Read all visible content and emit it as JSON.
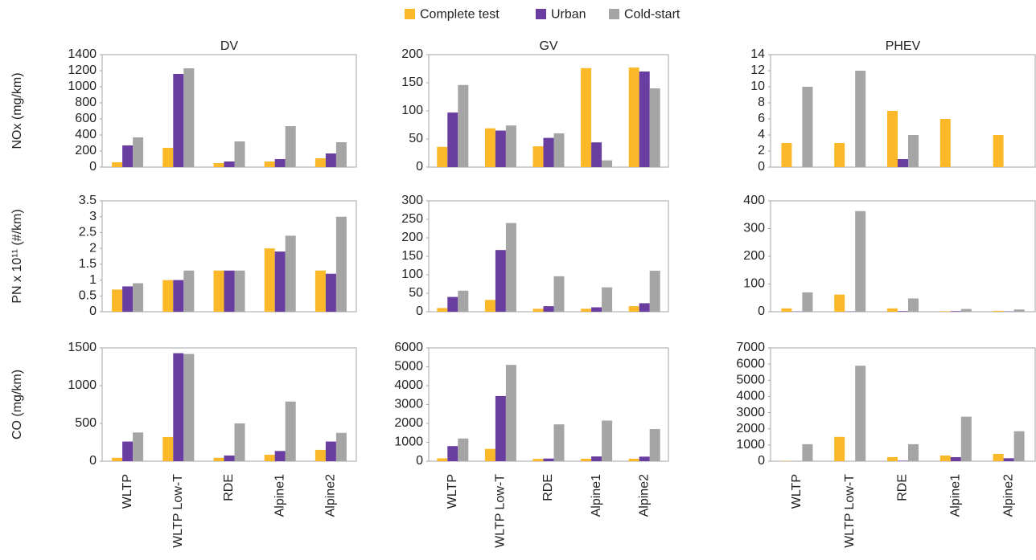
{
  "chart_data": [
    {
      "type": "bar",
      "title": "DV",
      "y_label": "NOx (mg/km)",
      "ylim": [
        0,
        1400
      ],
      "yticks": [
        0,
        200,
        400,
        600,
        800,
        1000,
        1200,
        1400
      ],
      "series": [
        {
          "name": "Complete test",
          "color": "#fbb829",
          "values": [
            60,
            240,
            50,
            70,
            110
          ]
        },
        {
          "name": "Urban",
          "color": "#6a3ea1",
          "values": [
            270,
            1160,
            70,
            100,
            170
          ]
        },
        {
          "name": "Cold-start",
          "color": "#a5a5a5",
          "values": [
            370,
            1230,
            320,
            510,
            310
          ]
        }
      ]
    },
    {
      "type": "bar",
      "title": "GV",
      "ylim": [
        0,
        200
      ],
      "yticks": [
        0,
        50,
        100,
        150,
        200
      ],
      "series": [
        {
          "values": [
            36,
            69,
            37,
            176,
            177
          ]
        },
        {
          "values": [
            97,
            65,
            52,
            44,
            170
          ]
        },
        {
          "values": [
            146,
            74,
            60,
            12,
            140
          ]
        }
      ]
    },
    {
      "type": "bar",
      "title": "PHEV",
      "ylim": [
        0,
        14
      ],
      "yticks": [
        0,
        2,
        4,
        6,
        8,
        10,
        12,
        14
      ],
      "series": [
        {
          "values": [
            3,
            3,
            7,
            6,
            4
          ]
        },
        {
          "values": [
            0,
            0,
            1,
            0,
            0
          ]
        },
        {
          "values": [
            10,
            12,
            4,
            0,
            0
          ]
        }
      ]
    },
    {
      "type": "bar",
      "y_label": "PN x 10¹¹ (#/km)",
      "ylim": [
        0,
        3.5
      ],
      "yticks": [
        0,
        0.5,
        1,
        1.5,
        2,
        2.5,
        3,
        3.5
      ],
      "series": [
        {
          "values": [
            0.7,
            1.0,
            1.3,
            2.0,
            1.3
          ]
        },
        {
          "values": [
            0.8,
            1.0,
            1.3,
            1.9,
            1.2
          ]
        },
        {
          "values": [
            0.9,
            1.3,
            1.3,
            2.4,
            3.0
          ]
        }
      ]
    },
    {
      "type": "bar",
      "ylim": [
        0,
        300
      ],
      "yticks": [
        0,
        50,
        100,
        150,
        200,
        250,
        300
      ],
      "series": [
        {
          "values": [
            10,
            32,
            8,
            8,
            15
          ]
        },
        {
          "values": [
            40,
            167,
            15,
            12,
            23
          ]
        },
        {
          "values": [
            57,
            240,
            96,
            66,
            111
          ]
        }
      ]
    },
    {
      "type": "bar",
      "ylim": [
        0,
        400
      ],
      "yticks": [
        0,
        100,
        200,
        300,
        400
      ],
      "series": [
        {
          "values": [
            12,
            62,
            12,
            2,
            3
          ]
        },
        {
          "values": [
            1,
            1,
            2,
            2,
            1
          ]
        },
        {
          "values": [
            70,
            363,
            48,
            10,
            8
          ]
        }
      ]
    },
    {
      "type": "bar",
      "y_label": "CO (mg/km)",
      "categories": [
        "WLTP",
        "WLTP Low-T",
        "RDE",
        "Alpine1",
        "Alpine2"
      ],
      "ylim": [
        0,
        1500
      ],
      "yticks": [
        0,
        500,
        1000,
        1500
      ],
      "series": [
        {
          "values": [
            45,
            320,
            45,
            85,
            150
          ]
        },
        {
          "values": [
            260,
            1430,
            75,
            135,
            260
          ]
        },
        {
          "values": [
            380,
            1420,
            500,
            790,
            375
          ]
        }
      ]
    },
    {
      "type": "bar",
      "categories": [
        "WLTP",
        "WLTP Low-T",
        "RDE",
        "Alpine1",
        "Alpine2"
      ],
      "ylim": [
        0,
        6000
      ],
      "yticks": [
        0,
        1000,
        2000,
        3000,
        4000,
        5000,
        6000
      ],
      "series": [
        {
          "values": [
            150,
            650,
            120,
            130,
            130
          ]
        },
        {
          "values": [
            800,
            3450,
            140,
            250,
            240
          ]
        },
        {
          "values": [
            1200,
            5100,
            1950,
            2150,
            1700
          ]
        }
      ]
    },
    {
      "type": "bar",
      "categories": [
        "WLTP",
        "WLTP Low-T",
        "RDE",
        "Alpine1",
        "Alpine2"
      ],
      "ylim": [
        0,
        7000
      ],
      "yticks": [
        0,
        1000,
        2000,
        3000,
        4000,
        5000,
        6000,
        7000
      ],
      "series": [
        {
          "values": [
            20,
            1500,
            250,
            350,
            450
          ]
        },
        {
          "values": [
            0,
            0,
            30,
            250,
            180
          ]
        },
        {
          "values": [
            1050,
            5900,
            1050,
            2750,
            1850
          ]
        }
      ]
    }
  ]
}
